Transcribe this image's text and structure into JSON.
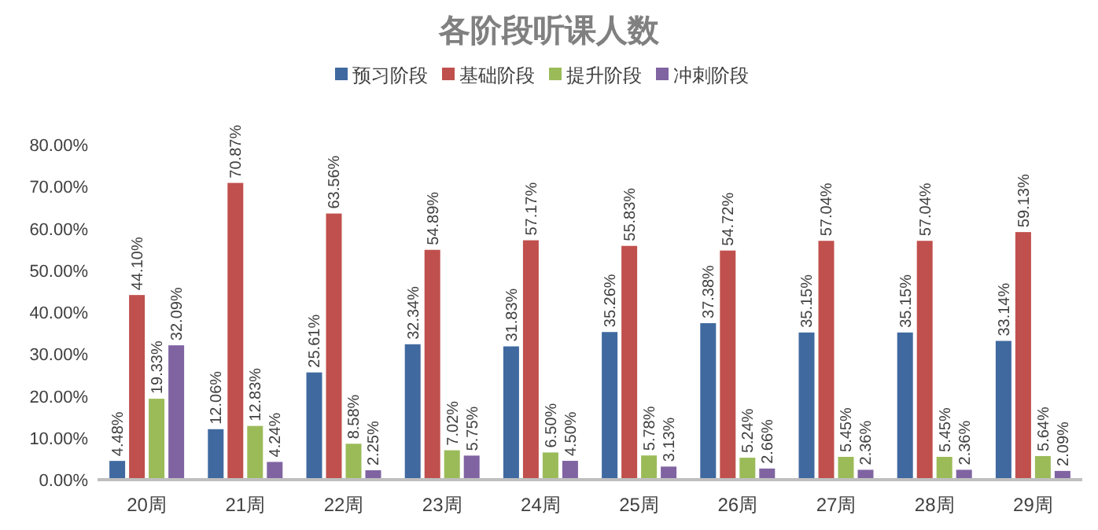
{
  "chart_data": {
    "type": "bar",
    "title": "各阶段听课人数",
    "categories": [
      "20周",
      "21周",
      "22周",
      "23周",
      "24周",
      "25周",
      "26周",
      "27周",
      "28周",
      "29周"
    ],
    "series": [
      {
        "name": "预习阶段",
        "color": "#4069a0",
        "values": [
          4.48,
          12.06,
          25.61,
          32.34,
          31.83,
          35.26,
          37.38,
          35.15,
          35.15,
          33.14
        ],
        "value_labels": [
          "4.48%",
          "12.06%",
          "25.61%",
          "32.34%",
          "31.83%",
          "35.26%",
          "37.38%",
          "35.15%",
          "35.15%",
          "33.14%"
        ]
      },
      {
        "name": "基础阶段",
        "color": "#c0504d",
        "values": [
          44.1,
          70.87,
          63.56,
          54.89,
          57.17,
          55.83,
          54.72,
          57.04,
          57.04,
          59.13
        ],
        "value_labels": [
          "44.10%",
          "70.87%",
          "63.56%",
          "54.89%",
          "57.17%",
          "55.83%",
          "54.72%",
          "57.04%",
          "57.04%",
          "59.13%"
        ]
      },
      {
        "name": "提升阶段",
        "color": "#9bbb59",
        "values": [
          19.33,
          12.83,
          8.58,
          7.02,
          6.5,
          5.78,
          5.24,
          5.45,
          5.45,
          5.64
        ],
        "value_labels": [
          "19.33%",
          "12.83%",
          "8.58%",
          "7.02%",
          "6.50%",
          "5.78%",
          "5.24%",
          "5.45%",
          "5.45%",
          "5.64%"
        ]
      },
      {
        "name": "冲刺阶段",
        "color": "#8064a2",
        "values": [
          32.09,
          4.24,
          2.25,
          5.75,
          4.5,
          3.13,
          2.66,
          2.36,
          2.36,
          2.09
        ],
        "value_labels": [
          "32.09%",
          "4.24%",
          "2.25%",
          "5.75%",
          "4.50%",
          "3.13%",
          "2.66%",
          "2.36%",
          "2.36%",
          "2.09%"
        ]
      }
    ],
    "ylim": [
      0,
      80
    ],
    "yticks": [
      {
        "value": 0,
        "label": "0.00%"
      },
      {
        "value": 10,
        "label": "10.00%"
      },
      {
        "value": 20,
        "label": "20.00%"
      },
      {
        "value": 30,
        "label": "30.00%"
      },
      {
        "value": 40,
        "label": "40.00%"
      },
      {
        "value": 50,
        "label": "50.00%"
      },
      {
        "value": 60,
        "label": "60.00%"
      },
      {
        "value": 70,
        "label": "70.00%"
      },
      {
        "value": 80,
        "label": "80.00%"
      }
    ],
    "grid": false,
    "legend": "top"
  }
}
